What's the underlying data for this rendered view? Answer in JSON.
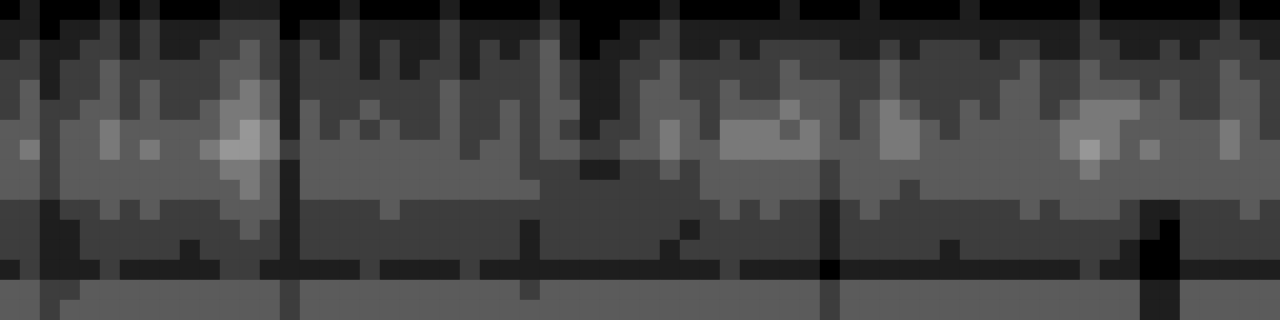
{
  "chart_data": {
    "type": "heatmap",
    "tick_labels": false,
    "grid": false,
    "value_range": [
      0,
      8
    ],
    "cells": [
      [
        0,
        1,
        0,
        0,
        0,
        1,
        0,
        1,
        0,
        0,
        0,
        1,
        1,
        1,
        0,
        0,
        0,
        1,
        0,
        0,
        0,
        0,
        1,
        0,
        0,
        0,
        0,
        1,
        0,
        0,
        0,
        0,
        0,
        1,
        0,
        0,
        0,
        0,
        0,
        1,
        0,
        0,
        0,
        1,
        0,
        0,
        0,
        0,
        1,
        0,
        0,
        0,
        0,
        0,
        1,
        0,
        0,
        0,
        0,
        0,
        0,
        1,
        0,
        0
      ],
      [
        1,
        1,
        0,
        1,
        1,
        2,
        1,
        2,
        1,
        1,
        1,
        2,
        2,
        2,
        0,
        1,
        1,
        2,
        1,
        1,
        1,
        1,
        2,
        1,
        1,
        1,
        1,
        2,
        1,
        0,
        0,
        1,
        1,
        2,
        1,
        1,
        1,
        1,
        1,
        1,
        1,
        1,
        1,
        1,
        1,
        1,
        1,
        1,
        1,
        1,
        1,
        1,
        1,
        1,
        2,
        1,
        1,
        1,
        1,
        1,
        1,
        2,
        1,
        1
      ],
      [
        1,
        2,
        1,
        1,
        2,
        2,
        1,
        2,
        1,
        1,
        2,
        2,
        3,
        2,
        1,
        2,
        1,
        2,
        1,
        2,
        1,
        1,
        2,
        1,
        2,
        1,
        2,
        3,
        1,
        0,
        1,
        1,
        2,
        2,
        1,
        1,
        2,
        1,
        2,
        2,
        2,
        2,
        1,
        1,
        2,
        1,
        2,
        2,
        2,
        1,
        2,
        2,
        1,
        1,
        2,
        2,
        1,
        1,
        2,
        1,
        2,
        2,
        2,
        1
      ],
      [
        2,
        2,
        1,
        2,
        2,
        3,
        2,
        2,
        2,
        2,
        2,
        3,
        3,
        2,
        1,
        2,
        2,
        2,
        1,
        2,
        1,
        2,
        2,
        1,
        2,
        2,
        2,
        3,
        2,
        1,
        1,
        2,
        2,
        3,
        2,
        2,
        2,
        2,
        2,
        3,
        2,
        2,
        2,
        2,
        3,
        2,
        2,
        2,
        2,
        2,
        2,
        3,
        2,
        2,
        3,
        2,
        2,
        2,
        2,
        2,
        2,
        3,
        2,
        2
      ],
      [
        2,
        3,
        1,
        2,
        2,
        3,
        2,
        3,
        2,
        2,
        2,
        3,
        4,
        3,
        1,
        2,
        2,
        2,
        2,
        2,
        2,
        2,
        3,
        2,
        2,
        2,
        2,
        3,
        2,
        1,
        1,
        2,
        3,
        3,
        2,
        2,
        3,
        2,
        2,
        3,
        3,
        3,
        2,
        2,
        3,
        2,
        2,
        2,
        2,
        2,
        3,
        3,
        2,
        2,
        3,
        3,
        3,
        2,
        3,
        2,
        2,
        3,
        3,
        2
      ],
      [
        2,
        3,
        2,
        2,
        3,
        3,
        2,
        3,
        2,
        2,
        3,
        4,
        4,
        3,
        1,
        3,
        2,
        2,
        3,
        2,
        2,
        2,
        3,
        2,
        2,
        3,
        2,
        3,
        3,
        1,
        1,
        2,
        3,
        3,
        3,
        2,
        3,
        3,
        3,
        4,
        3,
        3,
        2,
        3,
        4,
        3,
        2,
        2,
        3,
        2,
        3,
        3,
        2,
        3,
        4,
        4,
        4,
        3,
        3,
        2,
        2,
        3,
        3,
        2
      ],
      [
        3,
        3,
        2,
        3,
        3,
        4,
        3,
        3,
        3,
        3,
        3,
        4,
        5,
        4,
        1,
        3,
        2,
        3,
        2,
        3,
        2,
        2,
        3,
        2,
        2,
        3,
        2,
        3,
        2,
        1,
        2,
        2,
        3,
        4,
        3,
        2,
        4,
        4,
        4,
        3,
        4,
        3,
        2,
        3,
        4,
        4,
        3,
        2,
        3,
        3,
        3,
        3,
        3,
        4,
        4,
        4,
        3,
        3,
        3,
        3,
        3,
        4,
        3,
        2
      ],
      [
        3,
        4,
        2,
        3,
        3,
        4,
        3,
        4,
        3,
        3,
        4,
        5,
        5,
        4,
        2,
        3,
        3,
        3,
        3,
        3,
        3,
        3,
        3,
        2,
        3,
        3,
        2,
        3,
        3,
        2,
        2,
        3,
        3,
        4,
        3,
        3,
        4,
        4,
        4,
        4,
        4,
        3,
        3,
        3,
        4,
        4,
        3,
        3,
        3,
        3,
        3,
        3,
        3,
        4,
        5,
        4,
        3,
        4,
        3,
        3,
        3,
        4,
        3,
        3
      ],
      [
        3,
        3,
        2,
        3,
        3,
        3,
        3,
        3,
        3,
        3,
        3,
        4,
        4,
        3,
        1,
        3,
        3,
        3,
        3,
        3,
        3,
        3,
        3,
        3,
        3,
        3,
        2,
        2,
        2,
        1,
        1,
        2,
        2,
        3,
        2,
        3,
        3,
        3,
        3,
        3,
        3,
        2,
        3,
        3,
        3,
        3,
        3,
        3,
        3,
        3,
        3,
        3,
        3,
        3,
        4,
        3,
        3,
        3,
        3,
        3,
        3,
        3,
        3,
        3
      ],
      [
        3,
        3,
        2,
        3,
        3,
        3,
        3,
        3,
        3,
        3,
        3,
        3,
        4,
        3,
        1,
        3,
        3,
        3,
        3,
        3,
        3,
        3,
        3,
        3,
        3,
        3,
        3,
        2,
        2,
        2,
        2,
        2,
        2,
        2,
        2,
        3,
        3,
        3,
        3,
        3,
        3,
        2,
        3,
        3,
        3,
        2,
        3,
        3,
        3,
        3,
        3,
        3,
        3,
        3,
        3,
        3,
        3,
        3,
        3,
        3,
        3,
        3,
        3,
        3
      ],
      [
        2,
        2,
        1,
        2,
        2,
        3,
        2,
        3,
        2,
        2,
        2,
        3,
        3,
        3,
        1,
        2,
        2,
        2,
        2,
        3,
        2,
        2,
        2,
        2,
        2,
        2,
        2,
        2,
        2,
        2,
        2,
        2,
        2,
        2,
        2,
        2,
        3,
        2,
        3,
        2,
        2,
        1,
        2,
        3,
        2,
        2,
        2,
        2,
        2,
        2,
        2,
        3,
        2,
        3,
        3,
        3,
        2,
        1,
        1,
        2,
        2,
        2,
        3,
        2
      ],
      [
        2,
        2,
        1,
        1,
        2,
        2,
        2,
        2,
        2,
        2,
        2,
        2,
        3,
        2,
        1,
        2,
        2,
        2,
        2,
        2,
        2,
        2,
        2,
        2,
        2,
        2,
        1,
        2,
        2,
        2,
        2,
        2,
        2,
        2,
        1,
        2,
        2,
        2,
        2,
        2,
        2,
        1,
        2,
        2,
        2,
        2,
        2,
        2,
        2,
        2,
        2,
        2,
        2,
        2,
        2,
        2,
        2,
        1,
        0,
        2,
        2,
        2,
        2,
        2
      ],
      [
        2,
        2,
        1,
        1,
        2,
        2,
        2,
        2,
        2,
        1,
        2,
        2,
        2,
        2,
        1,
        2,
        2,
        2,
        2,
        2,
        2,
        2,
        2,
        2,
        2,
        2,
        1,
        2,
        2,
        2,
        2,
        2,
        2,
        1,
        2,
        2,
        2,
        2,
        2,
        2,
        2,
        1,
        2,
        2,
        2,
        2,
        2,
        1,
        2,
        2,
        2,
        2,
        2,
        2,
        2,
        2,
        1,
        0,
        0,
        2,
        2,
        2,
        2,
        2
      ],
      [
        1,
        2,
        1,
        1,
        1,
        2,
        1,
        1,
        1,
        1,
        1,
        2,
        2,
        1,
        1,
        1,
        1,
        1,
        2,
        1,
        1,
        1,
        1,
        2,
        1,
        1,
        1,
        1,
        1,
        1,
        1,
        1,
        1,
        1,
        1,
        1,
        2,
        1,
        1,
        1,
        1,
        0,
        1,
        1,
        1,
        1,
        1,
        1,
        1,
        1,
        1,
        1,
        1,
        1,
        2,
        1,
        1,
        0,
        0,
        1,
        1,
        1,
        1,
        1
      ],
      [
        3,
        3,
        2,
        2,
        3,
        3,
        3,
        3,
        3,
        3,
        3,
        3,
        3,
        3,
        2,
        3,
        3,
        3,
        3,
        3,
        3,
        3,
        3,
        3,
        3,
        3,
        2,
        3,
        3,
        3,
        3,
        3,
        3,
        3,
        3,
        3,
        3,
        3,
        3,
        3,
        3,
        2,
        3,
        3,
        3,
        3,
        3,
        3,
        3,
        3,
        3,
        3,
        3,
        3,
        3,
        3,
        3,
        1,
        1,
        3,
        3,
        3,
        3,
        3
      ],
      [
        3,
        3,
        2,
        3,
        3,
        3,
        3,
        3,
        3,
        3,
        3,
        3,
        3,
        3,
        2,
        3,
        3,
        3,
        3,
        3,
        3,
        3,
        3,
        3,
        3,
        3,
        3,
        3,
        3,
        3,
        3,
        3,
        3,
        3,
        3,
        3,
        3,
        3,
        3,
        3,
        3,
        2,
        3,
        3,
        3,
        3,
        3,
        3,
        3,
        3,
        3,
        3,
        3,
        3,
        3,
        3,
        3,
        1,
        1,
        3,
        3,
        3,
        3,
        3
      ]
    ]
  }
}
